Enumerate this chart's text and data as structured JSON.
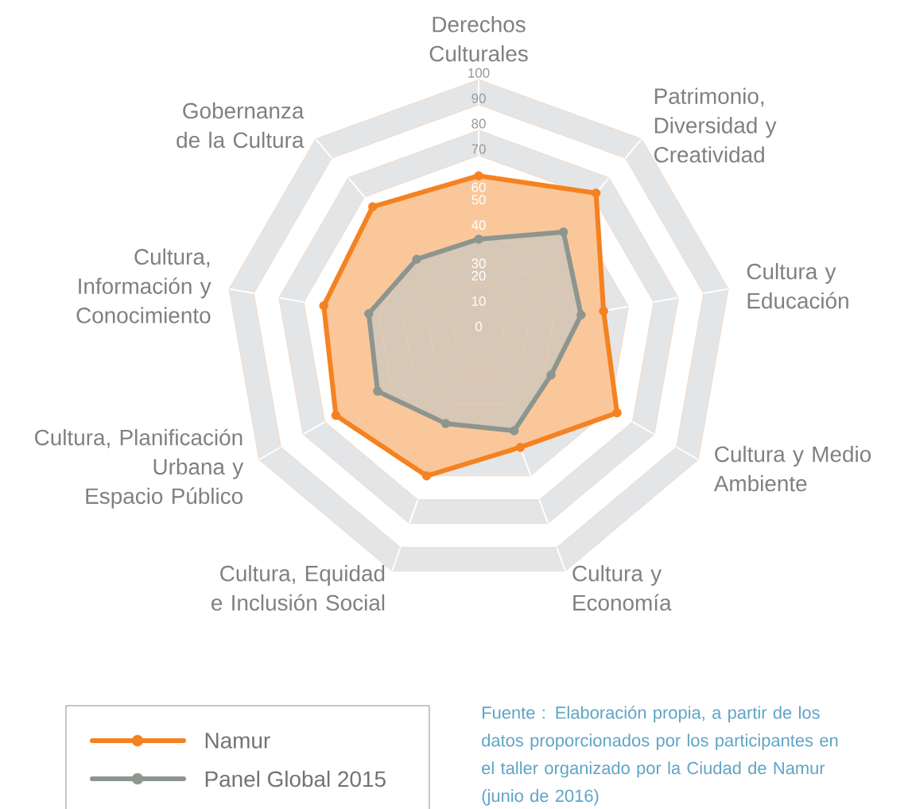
{
  "chart_data": {
    "type": "radar",
    "categories": [
      "Derechos Culturales",
      "Patrimonio, Diversidad y Creatividad",
      "Cultura y Educación",
      "Cultura y Medio Ambiente",
      "Cultura y Economía",
      "Cultura, Equidad e Inclusión Social",
      "Cultura, Planificación Urbana y Espacio Público",
      "Cultura, Información y Conocimiento",
      "Gobernanza de la Cultura"
    ],
    "series": [
      {
        "name": "Namur",
        "color": "#f58220",
        "values": [
          62,
          72,
          50,
          63,
          48,
          60,
          65,
          62,
          65
        ]
      },
      {
        "name": "Panel Global 2015",
        "color": "#8d958f",
        "values": [
          37,
          52,
          41,
          33,
          41,
          38,
          46,
          44,
          38
        ]
      }
    ],
    "ylim": [
      0,
      100
    ],
    "yticks": [
      0,
      10,
      20,
      30,
      40,
      50,
      60,
      70,
      80,
      90,
      100
    ],
    "marker": "circle",
    "legend": "bottom left",
    "annotations": [
      "Fuente : Elaboración propia, a partir de los datos proporcionados por los participantes en el taller organizado por la Ciudad de Namur (junio de 2016)"
    ]
  }
}
